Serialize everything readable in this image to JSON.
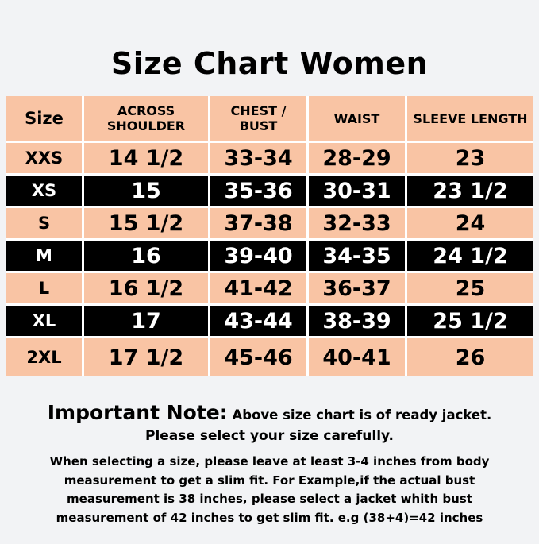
{
  "title": "Size Chart Women",
  "colors": {
    "header_row": "#f9c4a4",
    "odd_row": "#f9c4a4",
    "even_row": "#000000",
    "background": "#f2f3f5"
  },
  "table": {
    "headers": [
      "Size",
      "ACROSS SHOULDER",
      "CHEST / BUST",
      "WAIST",
      "SLEEVE LENGTH"
    ],
    "rows": [
      [
        "XXS",
        "14 1/2",
        "33-34",
        "28-29",
        "23"
      ],
      [
        "XS",
        "15",
        "35-36",
        "30-31",
        "23 1/2"
      ],
      [
        "S",
        "15 1/2",
        "37-38",
        "32-33",
        "24"
      ],
      [
        "M",
        "16",
        "39-40",
        "34-35",
        "24 1/2"
      ],
      [
        "L",
        "16 1/2",
        "41-42",
        "36-37",
        "25"
      ],
      [
        "XL",
        "17",
        "43-44",
        "38-39",
        "25 1/2"
      ],
      [
        "2XL",
        "17 1/2",
        "45-46",
        "40-41",
        "26"
      ]
    ]
  },
  "note": {
    "label": "Important Note:",
    "line1": "Above size chart is of ready jacket.",
    "line2": "Please select your size carefully.",
    "details": [
      "When selecting a size, please leave at least 3-4 inches from body",
      "measurement to get a slim fit. For Example,if the actual bust",
      "measurement is 38 inches, please select a jacket whith bust",
      "measurement of 42 inches to get slim fit. e.g (38+4)=42 inches"
    ]
  }
}
